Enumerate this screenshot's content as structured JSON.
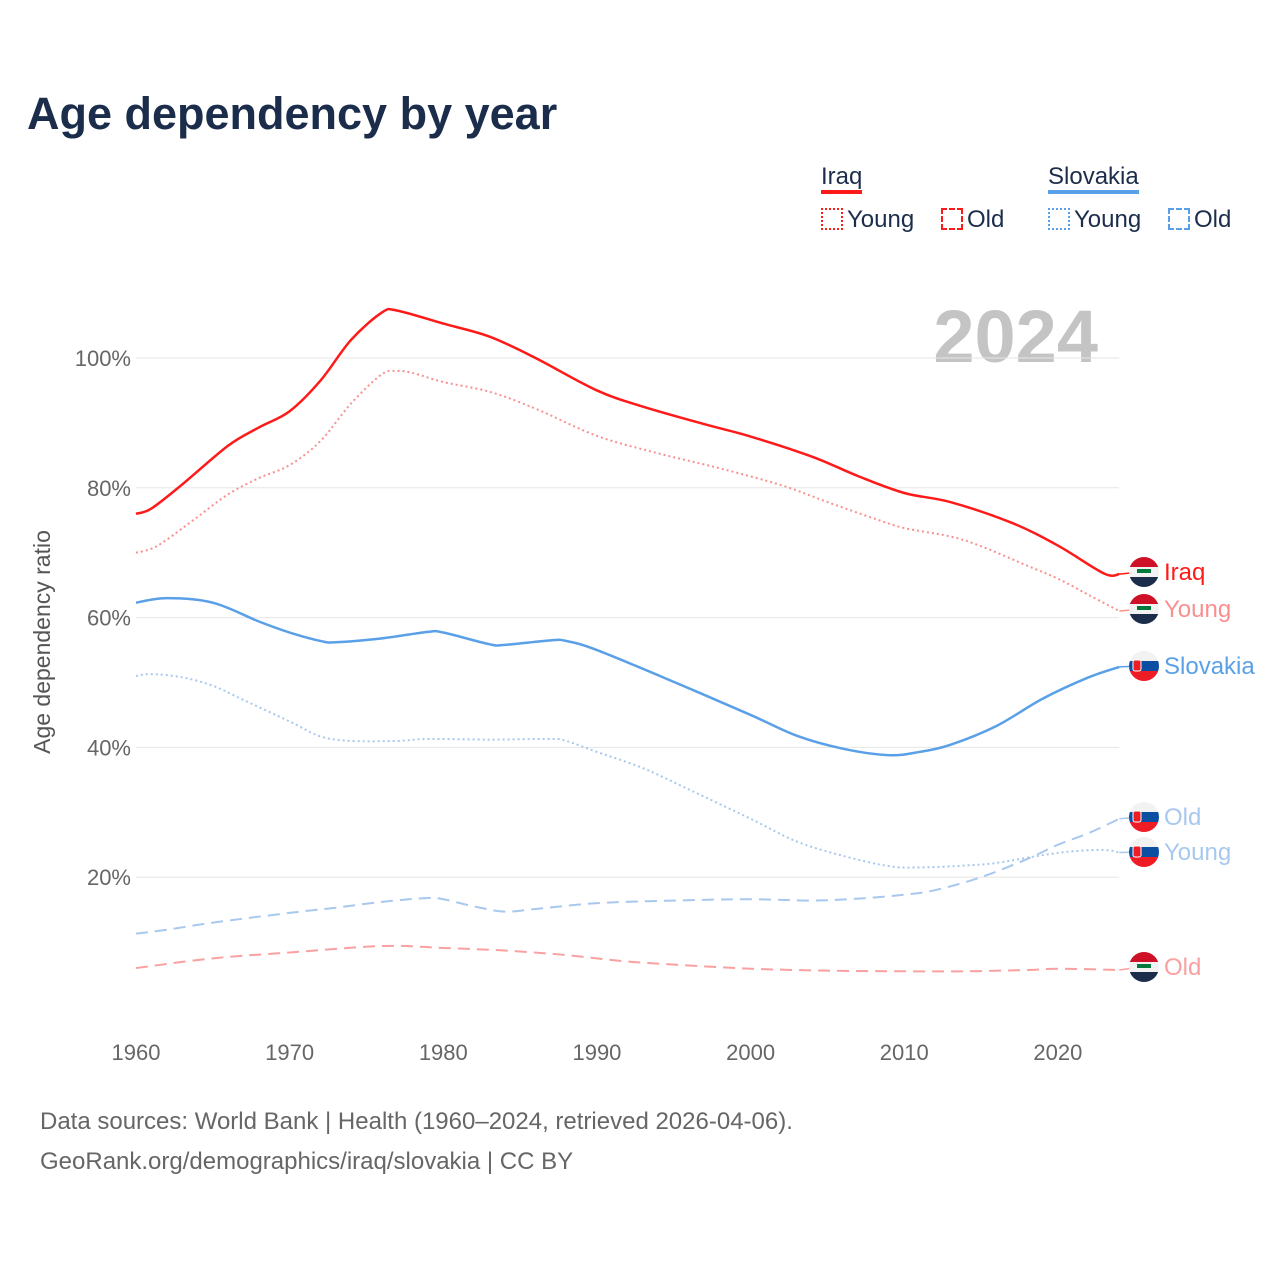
{
  "title": "Age dependency by year",
  "year_watermark": "2024",
  "legend": {
    "groups": [
      {
        "country": "Iraq",
        "color": "#ff1a1a",
        "young": "Young",
        "old": "Old"
      },
      {
        "country": "Slovakia",
        "color": "#5aa0e8",
        "young": "Young",
        "old": "Old"
      }
    ]
  },
  "footer": {
    "line1": "Data sources: World Bank | Health (1960–2024, retrieved 2026-04-06).",
    "line2": "GeoRank.org/demographics/iraq/slovakia | CC BY"
  },
  "chart_data": {
    "type": "line",
    "ylabel": "Age dependency ratio",
    "xlabel": "",
    "xlim": [
      1960,
      2024
    ],
    "ylim": [
      0,
      110
    ],
    "x_ticks": [
      "1960",
      "1970",
      "1980",
      "1990",
      "2000",
      "2010",
      "2020"
    ],
    "y_ticks": [
      "20%",
      "40%",
      "60%",
      "80%",
      "100%"
    ],
    "grid": true,
    "series": [
      {
        "name": "Iraq",
        "end_label": "Iraq",
        "color": "#ff1a1a",
        "style": "solid",
        "flag": "iraq",
        "x": [
          1960,
          1961,
          1963,
          1966,
          1968,
          1970,
          1972,
          1974,
          1976,
          1977,
          1980,
          1983,
          1986,
          1990,
          1993,
          1997,
          2000,
          2004,
          2007,
          2010,
          2013,
          2017,
          2020,
          2023,
          2024
        ],
        "y": [
          76,
          76.8,
          80.5,
          86.5,
          89.3,
          91.8,
          96.5,
          102.8,
          107,
          107.3,
          105.3,
          103.3,
          100,
          95,
          92.5,
          89.8,
          87.9,
          84.8,
          81.8,
          79.2,
          77.8,
          74.6,
          71.1,
          66.8,
          66.7
        ]
      },
      {
        "name": "Iraq Young",
        "end_label": "Young",
        "color": "#f99090",
        "style": "dotted",
        "flag": "iraq",
        "x": [
          1960,
          1961,
          1962,
          1964,
          1966,
          1968,
          1970,
          1972,
          1974,
          1976,
          1977,
          1978,
          1980,
          1983,
          1986,
          1990,
          1994,
          1998,
          2002,
          2005,
          2008,
          2010,
          2013,
          2015,
          2018,
          2020,
          2022,
          2024
        ],
        "y": [
          70,
          70.6,
          72,
          75.5,
          79,
          81.5,
          83.5,
          87.2,
          93,
          97.5,
          98,
          97.7,
          96.3,
          94.8,
          92.2,
          88,
          85.3,
          83,
          80.4,
          77.8,
          75.3,
          73.8,
          72.5,
          71,
          68,
          66,
          63.5,
          61
        ]
      },
      {
        "name": "Iraq Old",
        "end_label": "Old",
        "color": "#f9a0a0",
        "style": "dashed",
        "flag": "iraq",
        "x": [
          1960,
          1965,
          1970,
          1976,
          1980,
          1984,
          1988,
          1992,
          1996,
          2000,
          2005,
          2010,
          2014,
          2018,
          2020,
          2024
        ],
        "y": [
          6,
          7.5,
          8.4,
          9.4,
          9.1,
          8.7,
          8,
          7,
          6.4,
          5.9,
          5.6,
          5.5,
          5.5,
          5.7,
          5.9,
          5.7
        ]
      },
      {
        "name": "Slovakia",
        "end_label": "Slovakia",
        "color": "#5aa0e8",
        "style": "solid",
        "flag": "slovakia",
        "x": [
          1960,
          1962,
          1965,
          1968,
          1970,
          1972,
          1973,
          1976,
          1979,
          1980,
          1983,
          1984,
          1987,
          1988,
          1990,
          1995,
          2000,
          2003,
          2006,
          2009,
          2011,
          2013,
          2016,
          2019,
          2022,
          2024
        ],
        "y": [
          62.3,
          63,
          62.3,
          59.4,
          57.7,
          56.4,
          56.2,
          56.8,
          57.8,
          57.7,
          55.9,
          55.8,
          56.5,
          56.4,
          55,
          50.1,
          45,
          41.8,
          39.8,
          38.8,
          39.3,
          40.4,
          43.3,
          47.5,
          50.8,
          52.4
        ]
      },
      {
        "name": "Slovakia Young",
        "end_label": "Young",
        "color": "#a8c8ee",
        "style": "dotted",
        "flag": "slovakia",
        "x": [
          1960,
          1961,
          1963,
          1965,
          1967,
          1970,
          1972,
          1974,
          1977,
          1979,
          1983,
          1987,
          1988,
          1990,
          1993,
          1996,
          2000,
          2003,
          2006,
          2009,
          2011,
          2014,
          2016,
          2019,
          2021,
          2023,
          2024
        ],
        "y": [
          51,
          51.3,
          50.8,
          49.5,
          47.3,
          44,
          41.7,
          41,
          41,
          41.3,
          41.2,
          41.3,
          41,
          39.3,
          36.8,
          33.5,
          29,
          25.5,
          23.3,
          21.7,
          21.5,
          21.8,
          22.2,
          23.4,
          24,
          24.2,
          23.8
        ]
      },
      {
        "name": "Slovakia Old",
        "end_label": "Old",
        "color": "#a8c8ee",
        "style": "dashed",
        "flag": "slovakia",
        "x": [
          1960,
          1962,
          1965,
          1970,
          1973,
          1976,
          1979,
          1980,
          1982,
          1984,
          1986,
          1990,
          1995,
          2000,
          2004,
          2007,
          2010,
          2012,
          2015,
          2018,
          2020,
          2022,
          2024
        ],
        "y": [
          11.3,
          11.9,
          13,
          14.5,
          15.3,
          16.2,
          16.8,
          16.6,
          15.5,
          14.7,
          15.1,
          16,
          16.4,
          16.6,
          16.4,
          16.7,
          17.3,
          18,
          20,
          22.8,
          25,
          26.8,
          29
        ]
      }
    ]
  }
}
